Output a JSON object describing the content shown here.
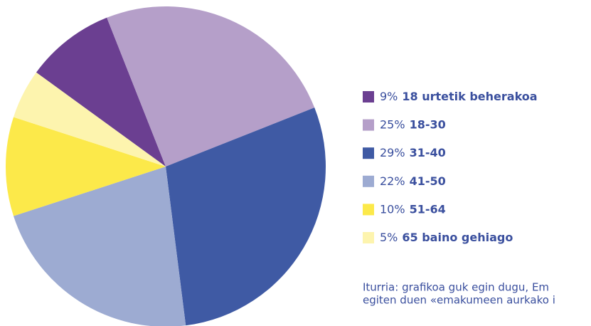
{
  "chart_data": {
    "type": "pie",
    "categories": [
      "18 urtetik beherakoa",
      "18-30",
      "31-40",
      "41-50",
      "51-64",
      "65 baino gehiago"
    ],
    "values": [
      9,
      25,
      29,
      22,
      10,
      5
    ],
    "value_labels": [
      "9%",
      "25%",
      "29%",
      "22%",
      "10%",
      "5%"
    ],
    "colors": [
      "#6b3f91",
      "#b59fc9",
      "#3f5aa4",
      "#9dabd2",
      "#fce94a",
      "#fdf4ae"
    ],
    "note": [
      "Iturria: grafikoa guk egin dugu, Em",
      "egiten duen «emakumeen aurkako i"
    ]
  }
}
